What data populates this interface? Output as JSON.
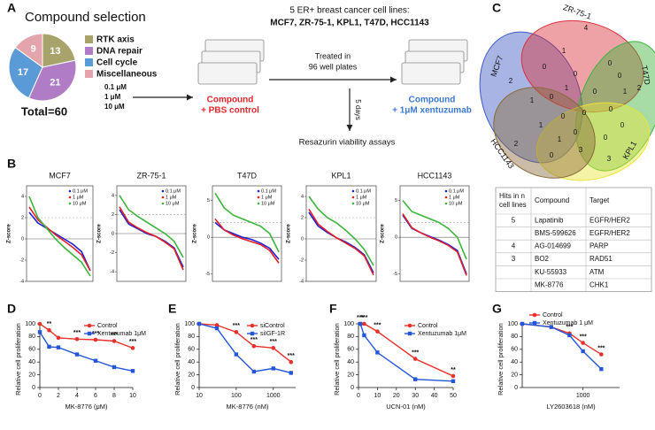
{
  "panels": [
    "A",
    "B",
    "C",
    "D",
    "E",
    "F",
    "G"
  ],
  "workflow": {
    "header": "5 ER+ breast cancer cell lines:",
    "cell_lines": "MCF7, ZR-75-1, KPL1, T47D, HCC1143",
    "treated": [
      "Treated in",
      "96 well plates"
    ],
    "duration": "5 days",
    "doses": [
      "0.1 μM",
      "1 μM",
      "10 μM"
    ],
    "control_arm": [
      "Compound",
      "+ PBS control"
    ],
    "treatment_arm": [
      "Compound",
      "+ 1μM xentuzumab"
    ],
    "readout": "Resazurin viability assays"
  },
  "venn": {
    "sets": [
      "MCF7",
      "ZR-75-1",
      "T47D",
      "KPL1",
      "HCC1143"
    ],
    "colors": [
      "#3d5bc4",
      "#d9303a",
      "#3fb13a",
      "#e8e43a",
      "#8a6a3a"
    ],
    "region_counts": [
      2,
      4,
      2,
      3,
      2,
      1,
      0,
      0,
      1,
      1,
      0,
      0,
      0,
      0,
      0,
      0,
      1,
      1,
      0,
      0,
      3,
      0,
      1,
      0,
      0
    ]
  },
  "table": {
    "header": [
      [
        "Hits in n",
        "cell lines"
      ],
      [
        "Compound"
      ],
      [
        "Target"
      ]
    ],
    "rows": [
      [
        "5",
        "Lapatinib",
        "EGFR/HER2"
      ],
      [
        null,
        "BMS-599626",
        "EGFR/HER2"
      ],
      [
        "4",
        "AG-014699",
        "PARP"
      ],
      [
        "3",
        "BO2",
        "RAD51"
      ],
      [
        null,
        "KU-55933",
        "ATM"
      ],
      [
        null,
        "MK-8776",
        "CHK1"
      ]
    ]
  },
  "chart_data": [
    {
      "type": "pie",
      "title": "Compound selection",
      "categories": [
        "RTK axis",
        "DNA repair",
        "Cell cycle",
        "Miscellaneous"
      ],
      "values": [
        13,
        21,
        17,
        9
      ],
      "colors": [
        "#a8a36a",
        "#b07cc6",
        "#5a9ad6",
        "#e3a4ac"
      ],
      "total": "Total=60"
    },
    {
      "type": "waterfall",
      "title": "MCF7",
      "ylabel": "Z-score",
      "ylim": [
        -4,
        5
      ],
      "yticks": [
        -4,
        -2,
        0,
        2,
        4
      ],
      "reference_lines": [
        2,
        0
      ],
      "series": [
        {
          "name": "0.1 μM",
          "color": "#2020d0",
          "values": [
            2.5,
            1.5,
            1,
            0.5,
            0,
            -0.5,
            -1.2,
            -3
          ]
        },
        {
          "name": "1 μM",
          "color": "#e0202a",
          "values": [
            3,
            1.8,
            1.1,
            0.4,
            -0.2,
            -0.8,
            -1.5,
            -3
          ]
        },
        {
          "name": "10 μM",
          "color": "#3cb43c",
          "values": [
            4,
            2,
            1,
            0,
            -0.8,
            -1.5,
            -2.2,
            -3.5
          ]
        }
      ]
    },
    {
      "type": "waterfall",
      "title": "ZR-75-1",
      "ylabel": "Z-score",
      "ylim": [
        -5,
        5
      ],
      "yticks": [
        -4,
        -2,
        0,
        2,
        4
      ],
      "reference_lines": [
        2,
        0
      ],
      "series": [
        {
          "name": "0.1 μM",
          "color": "#2020d0",
          "values": [
            2.5,
            1,
            0.5,
            0,
            -0.3,
            -0.8,
            -1.5,
            -3.5
          ]
        },
        {
          "name": "1 μM",
          "color": "#e0202a",
          "values": [
            2.8,
            1.2,
            0.6,
            0.1,
            -0.3,
            -0.9,
            -1.6,
            -3.8
          ]
        },
        {
          "name": "10 μM",
          "color": "#3cb43c",
          "values": [
            4,
            2.5,
            1.8,
            1.2,
            0.6,
            0,
            -0.8,
            -2.5
          ]
        }
      ]
    },
    {
      "type": "waterfall",
      "title": "T47D",
      "ylabel": "Z-score",
      "ylim": [
        -6,
        7
      ],
      "yticks": [
        -5,
        0,
        5
      ],
      "reference_lines": [
        2,
        0
      ],
      "series": [
        {
          "name": "0.1 μM",
          "color": "#2020d0",
          "values": [
            2,
            1,
            0.5,
            0,
            -0.3,
            -0.8,
            -1.5,
            -3
          ]
        },
        {
          "name": "1 μM",
          "color": "#e0202a",
          "values": [
            2.5,
            1,
            0.3,
            -0.2,
            -0.6,
            -1,
            -1.8,
            -3.5
          ]
        },
        {
          "name": "10 μM",
          "color": "#3cb43c",
          "values": [
            6,
            4,
            3,
            2.5,
            2,
            1.5,
            0.5,
            -2
          ]
        }
      ]
    },
    {
      "type": "waterfall",
      "title": "KPL1",
      "ylabel": "Z-score",
      "ylim": [
        -4,
        5
      ],
      "yticks": [
        -4,
        -2,
        0,
        2,
        4
      ],
      "reference_lines": [
        2,
        0
      ],
      "series": [
        {
          "name": "0.1 μM",
          "color": "#2020d0",
          "values": [
            2.5,
            1.2,
            0.6,
            0.1,
            -0.3,
            -0.8,
            -1.5,
            -3.2
          ]
        },
        {
          "name": "1 μM",
          "color": "#e0202a",
          "values": [
            2.8,
            1.4,
            0.7,
            0.1,
            -0.4,
            -0.9,
            -1.6,
            -3.4
          ]
        },
        {
          "name": "10 μM",
          "color": "#3cb43c",
          "values": [
            4,
            2.8,
            2,
            1.5,
            0.8,
            0,
            -1,
            -2.5
          ]
        }
      ]
    },
    {
      "type": "waterfall",
      "title": "HCC1143",
      "ylabel": "Z-score",
      "ylim": [
        -6,
        7
      ],
      "yticks": [
        -5,
        0,
        5
      ],
      "reference_lines": [
        2,
        0
      ],
      "series": [
        {
          "name": "0.1 μM",
          "color": "#2020d0",
          "values": [
            3,
            1.2,
            0.6,
            0.1,
            -0.4,
            -1,
            -1.8,
            -5
          ]
        },
        {
          "name": "1 μM",
          "color": "#e0202a",
          "values": [
            3.2,
            1.3,
            0.6,
            0,
            -0.5,
            -1.1,
            -2,
            -5.2
          ]
        },
        {
          "name": "10 μM",
          "color": "#3cb43c",
          "values": [
            5,
            3.5,
            3,
            2.5,
            2,
            1.2,
            0,
            -3
          ]
        }
      ]
    },
    {
      "type": "line",
      "xlabel": "MK-8776 (μM)",
      "ylabel": "Relative cell proliferation",
      "legend": "upper right",
      "x": [
        0,
        1,
        2,
        4,
        6,
        8,
        10
      ],
      "xlim": [
        0,
        10
      ],
      "xticks": [
        0,
        2,
        4,
        6,
        8,
        10
      ],
      "ylim": [
        0,
        100
      ],
      "yticks": [
        0,
        20,
        40,
        60,
        80,
        100
      ],
      "series": [
        {
          "name": "Control",
          "color": "#e8312a",
          "values": [
            100,
            90,
            78,
            76,
            75,
            73,
            62
          ]
        },
        {
          "name": "Xentuzumab 1μM",
          "color": "#2356d8",
          "values": [
            87,
            64,
            63,
            52,
            42,
            32,
            26
          ]
        }
      ],
      "significance": [
        null,
        "**",
        null,
        "***",
        "***",
        "***",
        "***"
      ]
    },
    {
      "type": "line",
      "xscale": "log",
      "xlabel": "MK-8776 (nM)",
      "ylabel": "Relative cell proliferation",
      "legend": "upper right",
      "x": [
        10,
        30,
        100,
        300,
        1000,
        3000
      ],
      "xlim": [
        10,
        4000
      ],
      "xticks": [
        10,
        100,
        1000
      ],
      "ylim": [
        0,
        100
      ],
      "yticks": [
        0,
        20,
        40,
        60,
        80,
        100
      ],
      "series": [
        {
          "name": "siControl",
          "color": "#e8312a",
          "values": [
            100,
            98,
            87,
            65,
            62,
            40
          ]
        },
        {
          "name": "siIGF-1R",
          "color": "#2356d8",
          "values": [
            100,
            93,
            52,
            25,
            30,
            23
          ]
        }
      ],
      "significance": [
        null,
        null,
        "***",
        "***",
        "***",
        "***"
      ]
    },
    {
      "type": "line",
      "xlabel": "UCN-01 (nM)",
      "ylabel": "Relative cell proliferation",
      "legend": "upper right",
      "x": [
        1,
        3,
        10,
        30,
        50
      ],
      "xlim": [
        0,
        50
      ],
      "xticks": [
        0,
        10,
        20,
        30,
        40,
        50
      ],
      "ylim": [
        0,
        100
      ],
      "yticks": [
        0,
        20,
        40,
        60,
        80,
        100
      ],
      "series": [
        {
          "name": "Control",
          "color": "#e8312a",
          "values": [
            100,
            100,
            88,
            45,
            18
          ]
        },
        {
          "name": "Xentuzumab 1μM",
          "color": "#2356d8",
          "values": [
            100,
            82,
            55,
            13,
            10
          ]
        }
      ],
      "significance": [
        "***",
        "***",
        "***",
        "***",
        "**"
      ]
    },
    {
      "type": "line",
      "xscale": "log",
      "xlabel": "LY2603618 (nM)",
      "ylabel": "Relative cell proliferation",
      "legend": "upper left",
      "x": [
        100,
        300,
        600,
        1000,
        2000
      ],
      "xlim": [
        100,
        4000
      ],
      "xticks": [
        1000
      ],
      "ylim": [
        0,
        100
      ],
      "yticks": [
        0,
        20,
        40,
        60,
        80,
        100
      ],
      "series": [
        {
          "name": "Control",
          "color": "#e8312a",
          "values": [
            100,
            95,
            85,
            70,
            52
          ]
        },
        {
          "name": "Xentuzumab 1 μM",
          "color": "#2356d8",
          "values": [
            100,
            95,
            82,
            57,
            29
          ]
        }
      ],
      "significance": [
        null,
        null,
        "***",
        "***",
        "***"
      ]
    }
  ]
}
